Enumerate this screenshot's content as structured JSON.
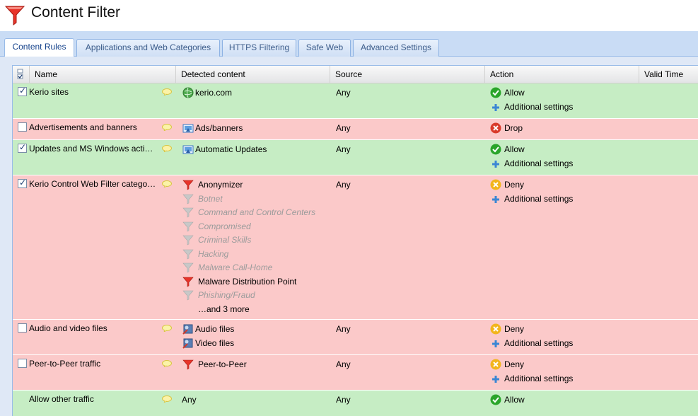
{
  "page": {
    "title": "Content Filter"
  },
  "tabs": [
    {
      "label": "Content Rules",
      "active": true
    },
    {
      "label": "Applications and Web Categories",
      "active": false
    },
    {
      "label": "HTTPS Filtering",
      "active": false
    },
    {
      "label": "Safe Web",
      "active": false
    },
    {
      "label": "Advanced Settings",
      "active": false
    }
  ],
  "columns": [
    "Name",
    "Detected content",
    "Source",
    "Action",
    "Valid Time"
  ],
  "rules": [
    {
      "name": "Kerio sites",
      "checked": true,
      "status": "allow",
      "content": [
        {
          "text": "kerio.com",
          "icon": "globe-icon"
        }
      ],
      "source": "Any",
      "action": "Allow",
      "extra": "Additional settings"
    },
    {
      "name": "Advertisements and banners",
      "checked": false,
      "status": "deny",
      "content": [
        {
          "text": "Ads/banners",
          "icon": "app-category-icon"
        }
      ],
      "source": "Any",
      "action": "Drop",
      "extra": ""
    },
    {
      "name": "Updates and MS Windows acti…",
      "checked": true,
      "status": "allow",
      "content": [
        {
          "text": "Automatic Updates",
          "icon": "app-category-icon"
        }
      ],
      "source": "Any",
      "action": "Allow",
      "extra": "Additional settings"
    },
    {
      "name": "Kerio Control Web Filter catego…",
      "checked": true,
      "status": "deny",
      "content": [
        {
          "text": "Anonymizer",
          "icon": "filter-icon"
        },
        {
          "text": "Botnet",
          "icon": "filter-icon",
          "dim": true
        },
        {
          "text": "Command and Control Centers",
          "icon": "filter-icon",
          "dim": true
        },
        {
          "text": "Compromised",
          "icon": "filter-icon",
          "dim": true
        },
        {
          "text": "Criminal Skills",
          "icon": "filter-icon",
          "dim": true
        },
        {
          "text": "Hacking",
          "icon": "filter-icon",
          "dim": true
        },
        {
          "text": "Malware Call-Home",
          "icon": "filter-icon",
          "dim": true
        },
        {
          "text": "Malware Distribution Point",
          "icon": "filter-icon"
        },
        {
          "text": "Phishing/Fraud",
          "icon": "filter-icon",
          "dim": true
        },
        {
          "text": "…and 3 more",
          "icon": ""
        }
      ],
      "source": "Any",
      "action": "Deny",
      "extra": "Additional settings"
    },
    {
      "name": "Audio and video files",
      "checked": false,
      "status": "deny",
      "content": [
        {
          "text": "Audio files",
          "icon": "file-type-icon"
        },
        {
          "text": "Video files",
          "icon": "file-type-icon"
        }
      ],
      "source": "Any",
      "action": "Deny",
      "extra": "Additional settings"
    },
    {
      "name": "Peer-to-Peer traffic",
      "checked": false,
      "status": "deny",
      "content": [
        {
          "text": "Peer-to-Peer",
          "icon": "filter-icon"
        }
      ],
      "source": "Any",
      "action": "Deny",
      "extra": "Additional settings"
    },
    {
      "name": "Allow other traffic",
      "checked": null,
      "status": "allow",
      "content": [
        {
          "text": "Any",
          "icon": ""
        }
      ],
      "source": "Any",
      "action": "Allow",
      "extra": ""
    }
  ],
  "colors": {
    "allow_row": "#c6edc4",
    "deny_row": "#fbc9c9",
    "accent": "#15428b"
  }
}
